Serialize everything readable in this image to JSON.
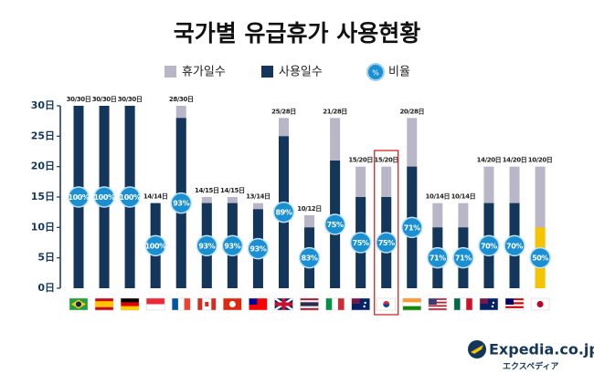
{
  "chart_data": {
    "type": "bar",
    "title": "국가별 유급휴가 사용현황",
    "series": [
      {
        "name": "휴가일수",
        "color": "#b9b6c8",
        "values": [
          30,
          30,
          30,
          14,
          30,
          15,
          15,
          14,
          28,
          12,
          28,
          20,
          20,
          28,
          14,
          14,
          20,
          20,
          20
        ]
      },
      {
        "name": "사용일수",
        "color": "#14365a",
        "values": [
          30,
          30,
          30,
          14,
          28,
          14,
          14,
          13,
          25,
          10,
          21,
          15,
          15,
          20,
          10,
          10,
          14,
          14,
          10
        ],
        "colors": [
          "#14365a",
          "#14365a",
          "#14365a",
          "#14365a",
          "#14365a",
          "#14365a",
          "#14365a",
          "#14365a",
          "#14365a",
          "#14365a",
          "#14365a",
          "#14365a",
          "#14365a",
          "#14365a",
          "#14365a",
          "#14365a",
          "#14365a",
          "#14365a",
          "#f5c400"
        ]
      }
    ],
    "bar_labels": [
      "30/30日",
      "30/30日",
      "30/30日",
      "14/14日",
      "28/30日",
      "14/15日",
      "14/15日",
      "13/14日",
      "25/28日",
      "10/12日",
      "21/28日",
      "15/20日",
      "15/20日",
      "20/28日",
      "10/14日",
      "10/14日",
      "14/20日",
      "14/20日",
      "10/20日"
    ],
    "ratio": {
      "name": "비율",
      "icon": "%",
      "color": "#1a8fd2",
      "values": [
        100,
        100,
        100,
        100,
        93,
        93,
        93,
        93,
        89,
        83,
        75,
        75,
        75,
        71,
        71,
        71,
        70,
        70,
        50
      ],
      "value_labels": [
        "100%",
        "100%",
        "100%",
        "100%",
        "93%",
        "93%",
        "93%",
        "93%",
        "89%",
        "83%",
        "75%",
        "75%",
        "75%",
        "71%",
        "71%",
        "71%",
        "70%",
        "70%",
        "50%"
      ]
    },
    "ylim": [
      0,
      30
    ],
    "yticks": [
      {
        "value": 0,
        "label": "0日"
      },
      {
        "value": 5,
        "label": "5日"
      },
      {
        "value": 10,
        "label": "10日"
      },
      {
        "value": 15,
        "label": "15日"
      },
      {
        "value": 20,
        "label": "20日"
      },
      {
        "value": 25,
        "label": "25日"
      },
      {
        "value": 30,
        "label": "30日"
      }
    ],
    "logo": {
      "name": "Expedia.co.jp",
      "subtitle": "エクスペディア"
    }
  }
}
